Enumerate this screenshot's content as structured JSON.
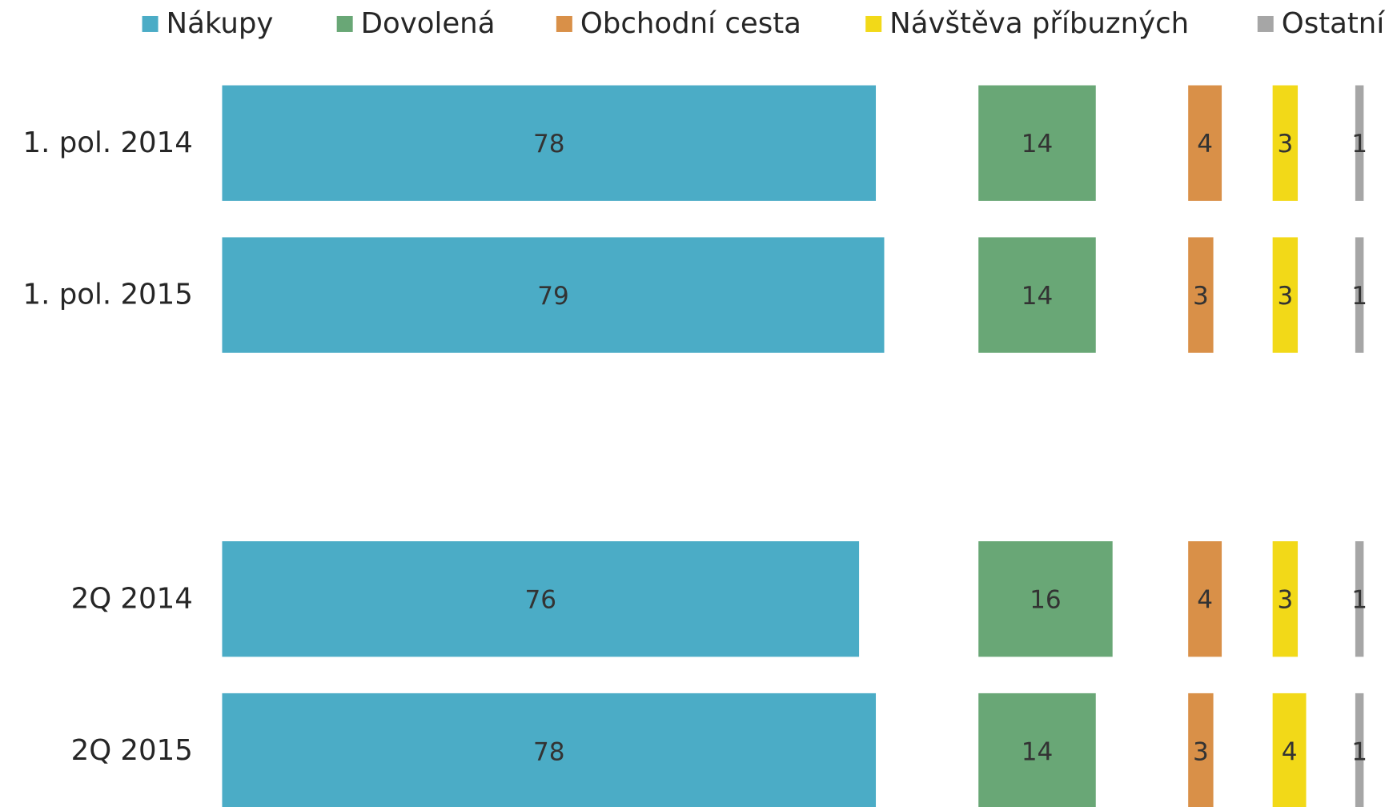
{
  "chart_data": {
    "type": "bar",
    "orientation": "horizontal",
    "categories": [
      "1. pol. 2014",
      "1. pol. 2015",
      null,
      "2Q 2014",
      "2Q 2015"
    ],
    "series": [
      {
        "name": "Nákupy",
        "color": "#4bacc6",
        "values": [
          78,
          79,
          null,
          76,
          78
        ]
      },
      {
        "name": "Dovolená",
        "color": "#69a776",
        "values": [
          14,
          14,
          null,
          16,
          14
        ]
      },
      {
        "name": "Obchodní cesta",
        "color": "#d99048",
        "values": [
          4,
          3,
          null,
          4,
          3
        ]
      },
      {
        "name": "Návštěva příbuzných",
        "color": "#f2d918",
        "values": [
          3,
          3,
          null,
          3,
          4
        ]
      },
      {
        "name": "Ostatní",
        "color": "#a6a6a6",
        "values": [
          1,
          1,
          null,
          1,
          1
        ]
      }
    ],
    "legend": "top"
  }
}
